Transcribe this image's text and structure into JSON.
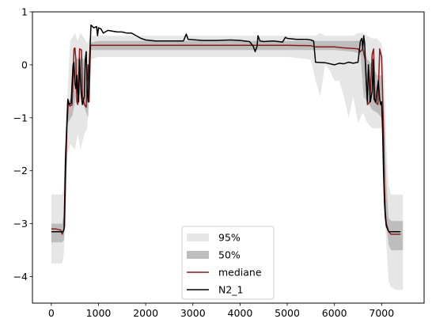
{
  "chart_data": {
    "type": "area",
    "title": "",
    "xlabel": "",
    "ylabel": "",
    "xlim": [
      -400,
      7900
    ],
    "ylim": [
      -4.5,
      1.0
    ],
    "xticks": [
      0,
      1000,
      2000,
      3000,
      4000,
      5000,
      6000,
      7000
    ],
    "xtick_labels": [
      "0",
      "1000",
      "2000",
      "3000",
      "4000",
      "5000",
      "6000",
      "7000"
    ],
    "yticks": [
      1,
      0,
      -1,
      -2,
      -3,
      -4
    ],
    "ytick_labels": [
      "1",
      "0",
      "−1",
      "−2",
      "−3",
      "−4"
    ],
    "grid": false,
    "legend": {
      "position": "lower center",
      "entries": [
        {
          "label": "95%",
          "color": "#e6e6e6",
          "kind": "band"
        },
        {
          "label": "50%",
          "color": "#bdbdbd",
          "kind": "band"
        },
        {
          "label": "mediane",
          "color": "#8b1a1a",
          "kind": "line"
        },
        {
          "label": "N2_1",
          "color": "#000000",
          "kind": "line"
        }
      ]
    },
    "colors": {
      "band95": "#e6e6e6",
      "band50": "#bdbdbd",
      "median": "#8b1a1a",
      "n2": "#000000"
    },
    "series": [
      {
        "name": "95%",
        "kind": "band",
        "points": [
          [
            0,
            -2.45,
            -3.75
          ],
          [
            230,
            -2.45,
            -3.75
          ],
          [
            260,
            -2.3,
            -3.6
          ],
          [
            300,
            -1.4,
            -2.9
          ],
          [
            340,
            -0.6,
            -1.7
          ],
          [
            400,
            0.45,
            -1.5
          ],
          [
            500,
            0.6,
            -1.6
          ],
          [
            560,
            0.45,
            -1.3
          ],
          [
            620,
            0.6,
            -1.6
          ],
          [
            700,
            0.5,
            -1.3
          ],
          [
            760,
            0.4,
            -1.2
          ],
          [
            830,
            0.55,
            0.1
          ],
          [
            1000,
            0.55,
            0.15
          ],
          [
            2000,
            0.55,
            0.15
          ],
          [
            3000,
            0.55,
            0.15
          ],
          [
            4000,
            0.55,
            0.15
          ],
          [
            5000,
            0.55,
            0.15
          ],
          [
            5500,
            0.55,
            0.1
          ],
          [
            5600,
            0.55,
            -0.3
          ],
          [
            5700,
            0.6,
            -0.6
          ],
          [
            5800,
            0.55,
            0.0
          ],
          [
            5900,
            0.55,
            -0.1
          ],
          [
            6000,
            0.55,
            -0.3
          ],
          [
            6100,
            0.55,
            -0.3
          ],
          [
            6200,
            0.55,
            -0.6
          ],
          [
            6300,
            0.55,
            -1.0
          ],
          [
            6400,
            0.55,
            -0.6
          ],
          [
            6500,
            0.6,
            -1.1
          ],
          [
            6600,
            0.6,
            -0.9
          ],
          [
            6700,
            0.55,
            -1.1
          ],
          [
            6800,
            0.5,
            -1.2
          ],
          [
            6900,
            0.5,
            -1.2
          ],
          [
            7000,
            0.4,
            -1.2
          ],
          [
            7060,
            -0.3,
            -2.6
          ],
          [
            7100,
            -1.5,
            -3.4
          ],
          [
            7150,
            -2.3,
            -4.1
          ],
          [
            7200,
            -2.45,
            -4.2
          ],
          [
            7300,
            -2.45,
            -4.25
          ],
          [
            7450,
            -2.45,
            -4.25
          ]
        ]
      },
      {
        "name": "50%",
        "kind": "band",
        "points": [
          [
            0,
            -3.0,
            -3.35
          ],
          [
            230,
            -3.0,
            -3.35
          ],
          [
            270,
            -2.8,
            -3.3
          ],
          [
            310,
            -1.6,
            -2.5
          ],
          [
            350,
            -0.7,
            -1.1
          ],
          [
            450,
            -0.6,
            -0.95
          ],
          [
            520,
            0.1,
            -0.6
          ],
          [
            620,
            0.15,
            -0.55
          ],
          [
            700,
            0.1,
            -0.8
          ],
          [
            780,
            -0.6,
            -1.0
          ],
          [
            830,
            0.42,
            0.28
          ],
          [
            1000,
            0.45,
            0.28
          ],
          [
            2000,
            0.45,
            0.28
          ],
          [
            3000,
            0.45,
            0.28
          ],
          [
            4000,
            0.45,
            0.28
          ],
          [
            5000,
            0.45,
            0.28
          ],
          [
            6000,
            0.45,
            0.28
          ],
          [
            6400,
            0.45,
            0.25
          ],
          [
            6550,
            0.45,
            0.2
          ],
          [
            6620,
            0.3,
            -0.6
          ],
          [
            6700,
            0.1,
            -0.7
          ],
          [
            6800,
            0.0,
            -0.85
          ],
          [
            6900,
            -0.2,
            -0.9
          ],
          [
            7000,
            -0.2,
            -1.0
          ],
          [
            7060,
            -1.0,
            -2.2
          ],
          [
            7100,
            -2.2,
            -3.0
          ],
          [
            7150,
            -2.9,
            -3.4
          ],
          [
            7200,
            -2.95,
            -3.5
          ],
          [
            7450,
            -2.95,
            -3.5
          ]
        ]
      },
      {
        "name": "mediane",
        "kind": "line",
        "points": [
          [
            0,
            -3.1
          ],
          [
            100,
            -3.1
          ],
          [
            200,
            -3.12
          ],
          [
            230,
            -3.2
          ],
          [
            260,
            -3.12
          ],
          [
            280,
            -3.05
          ],
          [
            300,
            -2.2
          ],
          [
            330,
            -1.2
          ],
          [
            360,
            -0.72
          ],
          [
            400,
            -0.78
          ],
          [
            440,
            -0.75
          ],
          [
            460,
            -0.3
          ],
          [
            480,
            0.3
          ],
          [
            500,
            0.32
          ],
          [
            520,
            0.1
          ],
          [
            540,
            -0.7
          ],
          [
            560,
            -0.75
          ],
          [
            600,
            0.3
          ],
          [
            640,
            0.28
          ],
          [
            660,
            -0.6
          ],
          [
            700,
            -0.75
          ],
          [
            740,
            -0.8
          ],
          [
            760,
            -0.3
          ],
          [
            780,
            0.0
          ],
          [
            800,
            -0.7
          ],
          [
            830,
            0.37
          ],
          [
            1000,
            0.37
          ],
          [
            2000,
            0.37
          ],
          [
            3000,
            0.37
          ],
          [
            4000,
            0.37
          ],
          [
            5000,
            0.37
          ],
          [
            5500,
            0.36
          ],
          [
            5600,
            0.34
          ],
          [
            6000,
            0.34
          ],
          [
            6200,
            0.32
          ],
          [
            6400,
            0.31
          ],
          [
            6500,
            0.3
          ],
          [
            6550,
            0.25
          ],
          [
            6600,
            0.3
          ],
          [
            6650,
            0.1
          ],
          [
            6700,
            -0.75
          ],
          [
            6750,
            -0.7
          ],
          [
            6800,
            0.2
          ],
          [
            6830,
            0.3
          ],
          [
            6860,
            -0.7
          ],
          [
            6920,
            -0.75
          ],
          [
            6960,
            0.3
          ],
          [
            7000,
            0.15
          ],
          [
            7020,
            -0.5
          ],
          [
            7040,
            -1.3
          ],
          [
            7060,
            -2.3
          ],
          [
            7080,
            -2.8
          ],
          [
            7100,
            -3.0
          ],
          [
            7150,
            -3.15
          ],
          [
            7200,
            -3.2
          ],
          [
            7400,
            -3.2
          ]
        ]
      },
      {
        "name": "N2_1",
        "kind": "line",
        "points": [
          [
            0,
            -3.15
          ],
          [
            200,
            -3.15
          ],
          [
            250,
            -3.15
          ],
          [
            270,
            -3.1
          ],
          [
            300,
            -1.8
          ],
          [
            330,
            -1.1
          ],
          [
            350,
            -0.65
          ],
          [
            380,
            -0.75
          ],
          [
            420,
            -0.72
          ],
          [
            460,
            0.0
          ],
          [
            480,
            0.05
          ],
          [
            500,
            -0.35
          ],
          [
            520,
            -0.45
          ],
          [
            540,
            -0.2
          ],
          [
            560,
            -0.5
          ],
          [
            580,
            -0.7
          ],
          [
            600,
            0.1
          ],
          [
            620,
            -0.3
          ],
          [
            640,
            -0.6
          ],
          [
            660,
            -0.75
          ],
          [
            700,
            -0.6
          ],
          [
            720,
            0.1
          ],
          [
            740,
            0.25
          ],
          [
            760,
            -0.5
          ],
          [
            780,
            -0.7
          ],
          [
            810,
            0.1
          ],
          [
            840,
            0.75
          ],
          [
            900,
            0.7
          ],
          [
            960,
            0.72
          ],
          [
            980,
            0.55
          ],
          [
            1000,
            0.7
          ],
          [
            1050,
            0.68
          ],
          [
            1100,
            0.6
          ],
          [
            1200,
            0.65
          ],
          [
            1400,
            0.62
          ],
          [
            1500,
            0.62
          ],
          [
            1600,
            0.6
          ],
          [
            1700,
            0.6
          ],
          [
            1800,
            0.55
          ],
          [
            1900,
            0.5
          ],
          [
            2000,
            0.47
          ],
          [
            2200,
            0.45
          ],
          [
            2500,
            0.45
          ],
          [
            2800,
            0.45
          ],
          [
            2860,
            0.58
          ],
          [
            2900,
            0.48
          ],
          [
            3200,
            0.46
          ],
          [
            3500,
            0.46
          ],
          [
            3800,
            0.47
          ],
          [
            4000,
            0.46
          ],
          [
            4200,
            0.44
          ],
          [
            4280,
            0.35
          ],
          [
            4320,
            0.25
          ],
          [
            4360,
            0.35
          ],
          [
            4380,
            0.55
          ],
          [
            4420,
            0.45
          ],
          [
            4500,
            0.44
          ],
          [
            4700,
            0.45
          ],
          [
            4900,
            0.43
          ],
          [
            4960,
            0.52
          ],
          [
            5000,
            0.5
          ],
          [
            5200,
            0.48
          ],
          [
            5400,
            0.48
          ],
          [
            5500,
            0.47
          ],
          [
            5560,
            0.45
          ],
          [
            5600,
            0.05
          ],
          [
            5800,
            0.04
          ],
          [
            6000,
            0.0
          ],
          [
            6100,
            0.03
          ],
          [
            6200,
            0.02
          ],
          [
            6300,
            0.05
          ],
          [
            6400,
            0.03
          ],
          [
            6500,
            0.05
          ],
          [
            6550,
            0.45
          ],
          [
            6580,
            0.5
          ],
          [
            6600,
            0.3
          ],
          [
            6620,
            0.55
          ],
          [
            6640,
            0.4
          ],
          [
            6660,
            0.0
          ],
          [
            6680,
            -0.4
          ],
          [
            6700,
            -0.7
          ],
          [
            6720,
            0.0
          ],
          [
            6740,
            -0.3
          ],
          [
            6760,
            -0.7
          ],
          [
            6800,
            -0.5
          ],
          [
            6820,
            0.1
          ],
          [
            6840,
            -0.65
          ],
          [
            6880,
            -0.7
          ],
          [
            6900,
            -0.5
          ],
          [
            6930,
            -0.3
          ],
          [
            6960,
            -0.65
          ],
          [
            6980,
            -0.75
          ],
          [
            7000,
            -0.7
          ],
          [
            7020,
            -1.2
          ],
          [
            7040,
            -2.0
          ],
          [
            7060,
            -2.6
          ],
          [
            7080,
            -2.9
          ],
          [
            7100,
            -3.05
          ],
          [
            7150,
            -3.15
          ],
          [
            7400,
            -3.15
          ]
        ]
      }
    ]
  }
}
